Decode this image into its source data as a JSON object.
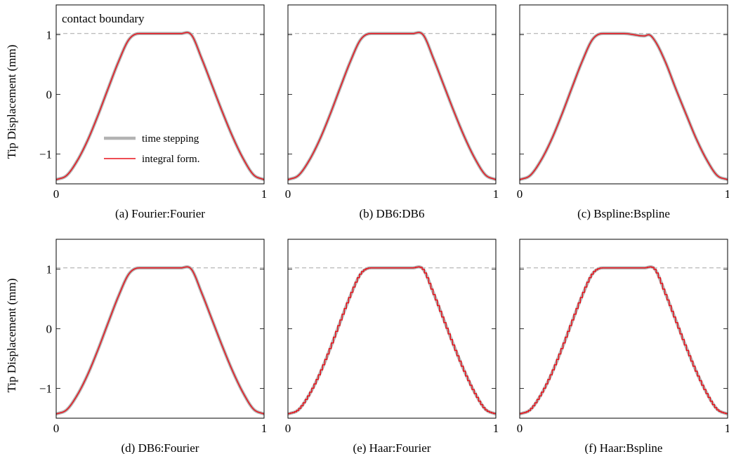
{
  "figure": {
    "ylabel": "Tip Displacement (mm)",
    "contact_label": "contact boundary",
    "legend": [
      {
        "name": "time stepping",
        "color": "#b3b3b3"
      },
      {
        "name": "integral form.",
        "color": "#e8121b"
      }
    ]
  },
  "chart_data": [
    {
      "type": "line",
      "caption": "(a)  Fourier:Fourier",
      "xlim": [
        0,
        1
      ],
      "ylim": [
        -1.5,
        1.5
      ],
      "xticks": [
        "0",
        "1"
      ],
      "yticks": [
        "1",
        "0",
        "−1"
      ],
      "contact_boundary": 1.02,
      "series": [
        {
          "name": "time stepping",
          "color": "#b3b3b3"
        },
        {
          "name": "integral form.",
          "color": "#e8121b"
        }
      ],
      "x": [
        0,
        0.05,
        0.1,
        0.15,
        0.2,
        0.25,
        0.3,
        0.35,
        0.4,
        0.5,
        0.6,
        0.65,
        0.7,
        0.75,
        0.8,
        0.85,
        0.9,
        0.95,
        1.0
      ],
      "y": [
        -1.43,
        -1.36,
        -1.12,
        -0.78,
        -0.36,
        0.1,
        0.55,
        0.92,
        1.02,
        1.02,
        1.02,
        1.0,
        0.6,
        0.15,
        -0.3,
        -0.72,
        -1.08,
        -1.35,
        -1.43
      ]
    },
    {
      "type": "line",
      "caption": "(b)  DB6:DB6",
      "xlim": [
        0,
        1
      ],
      "ylim": [
        -1.5,
        1.5
      ],
      "xticks": [
        "0",
        "1"
      ],
      "yticks": [],
      "contact_boundary": 1.02,
      "series": [
        {
          "name": "time stepping",
          "color": "#b3b3b3"
        },
        {
          "name": "integral form.",
          "color": "#e8121b"
        }
      ],
      "x": [
        0,
        0.05,
        0.1,
        0.15,
        0.2,
        0.25,
        0.3,
        0.35,
        0.4,
        0.5,
        0.6,
        0.65,
        0.7,
        0.75,
        0.8,
        0.85,
        0.9,
        0.95,
        1.0
      ],
      "y": [
        -1.43,
        -1.36,
        -1.12,
        -0.78,
        -0.36,
        0.1,
        0.55,
        0.92,
        1.02,
        1.02,
        1.02,
        1.0,
        0.6,
        0.15,
        -0.3,
        -0.72,
        -1.08,
        -1.35,
        -1.43
      ]
    },
    {
      "type": "line",
      "caption": "(c)  Bspline:Bspline",
      "xlim": [
        0,
        1
      ],
      "ylim": [
        -1.5,
        1.5
      ],
      "xticks": [
        "0",
        "1"
      ],
      "yticks": [],
      "contact_boundary": 1.02,
      "series": [
        {
          "name": "time stepping",
          "color": "#b3b3b3"
        },
        {
          "name": "integral form.",
          "color": "#e8121b"
        }
      ],
      "x": [
        0,
        0.05,
        0.1,
        0.15,
        0.2,
        0.25,
        0.3,
        0.35,
        0.4,
        0.5,
        0.6,
        0.62,
        0.65,
        0.7,
        0.75,
        0.8,
        0.85,
        0.9,
        0.95,
        1.0
      ],
      "y": [
        -1.43,
        -1.36,
        -1.12,
        -0.78,
        -0.36,
        0.1,
        0.55,
        0.92,
        1.02,
        1.02,
        0.98,
        1.0,
        0.9,
        0.55,
        0.1,
        -0.33,
        -0.75,
        -1.1,
        -1.36,
        -1.43
      ]
    },
    {
      "type": "line",
      "caption": "(d)  DB6:Fourier",
      "xlim": [
        0,
        1
      ],
      "ylim": [
        -1.5,
        1.5
      ],
      "xticks": [
        "0",
        "1"
      ],
      "yticks": [
        "1",
        "0",
        "−1"
      ],
      "contact_boundary": 1.02,
      "series": [
        {
          "name": "time stepping",
          "color": "#b3b3b3"
        },
        {
          "name": "integral form.",
          "color": "#e8121b"
        }
      ],
      "x": [
        0,
        0.05,
        0.1,
        0.15,
        0.2,
        0.25,
        0.3,
        0.35,
        0.4,
        0.5,
        0.6,
        0.65,
        0.7,
        0.75,
        0.8,
        0.85,
        0.9,
        0.95,
        1.0
      ],
      "y": [
        -1.43,
        -1.36,
        -1.12,
        -0.78,
        -0.36,
        0.1,
        0.55,
        0.92,
        1.02,
        1.02,
        1.02,
        1.0,
        0.6,
        0.15,
        -0.3,
        -0.72,
        -1.08,
        -1.35,
        -1.43
      ]
    },
    {
      "type": "line",
      "caption": "(e)  Haar:Fourier",
      "xlim": [
        0,
        1
      ],
      "ylim": [
        -1.5,
        1.5
      ],
      "xticks": [
        "0",
        "1"
      ],
      "yticks": [],
      "contact_boundary": 1.02,
      "stepped": true,
      "series": [
        {
          "name": "time stepping",
          "color": "#b3b3b3"
        },
        {
          "name": "integral form.",
          "color": "#e8121b"
        }
      ],
      "x": [
        0,
        0.05,
        0.1,
        0.15,
        0.2,
        0.25,
        0.3,
        0.35,
        0.4,
        0.5,
        0.6,
        0.65,
        0.7,
        0.75,
        0.8,
        0.85,
        0.9,
        0.95,
        1.0
      ],
      "y": [
        -1.43,
        -1.36,
        -1.12,
        -0.78,
        -0.36,
        0.1,
        0.55,
        0.92,
        1.02,
        1.02,
        1.02,
        1.0,
        0.6,
        0.15,
        -0.3,
        -0.72,
        -1.08,
        -1.35,
        -1.43
      ]
    },
    {
      "type": "line",
      "caption": "(f)  Haar:Bspline",
      "xlim": [
        0,
        1
      ],
      "ylim": [
        -1.5,
        1.5
      ],
      "xticks": [
        "0",
        "1"
      ],
      "yticks": [],
      "contact_boundary": 1.02,
      "stepped": true,
      "series": [
        {
          "name": "time stepping",
          "color": "#b3b3b3"
        },
        {
          "name": "integral form.",
          "color": "#e8121b"
        }
      ],
      "x": [
        0,
        0.05,
        0.1,
        0.15,
        0.2,
        0.25,
        0.3,
        0.35,
        0.4,
        0.5,
        0.6,
        0.65,
        0.7,
        0.75,
        0.8,
        0.85,
        0.9,
        0.95,
        1.0
      ],
      "y": [
        -1.43,
        -1.36,
        -1.12,
        -0.78,
        -0.36,
        0.1,
        0.55,
        0.92,
        1.02,
        1.02,
        1.02,
        1.0,
        0.6,
        0.15,
        -0.3,
        -0.72,
        -1.08,
        -1.35,
        -1.43
      ]
    }
  ]
}
